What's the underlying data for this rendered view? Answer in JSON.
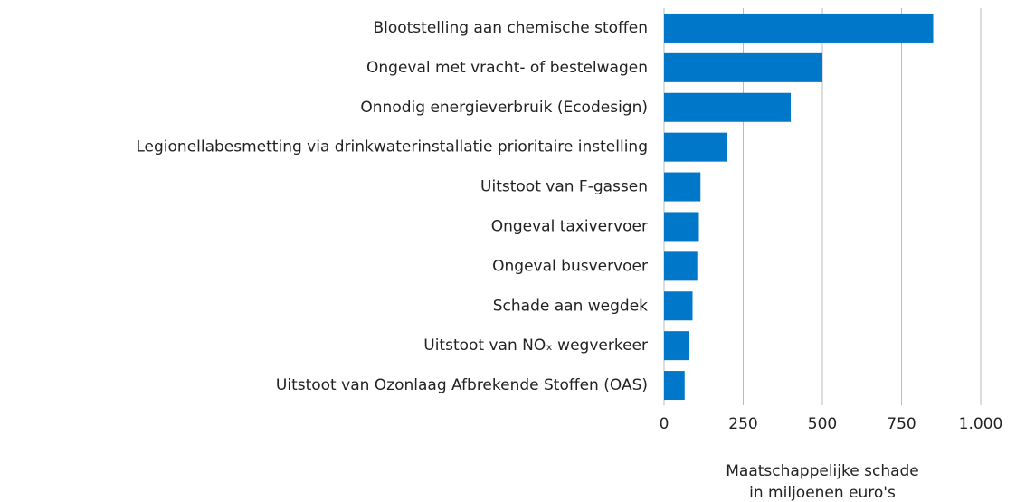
{
  "chart_data": {
    "type": "bar",
    "orientation": "horizontal",
    "categories": [
      "Blootstelling aan chemische stoffen",
      "Ongeval met vracht- of bestelwagen",
      "Onnodig energieverbruik (Ecodesign)",
      "Legionellabesmetting via drinkwaterinstallatie prioritaire instelling",
      "Uitstoot van F-gassen",
      "Ongeval taxivervoer",
      "Ongeval busvervoer",
      "Schade aan wegdek",
      "Uitstoot van NOₓ wegverkeer",
      "Uitstoot van Ozonlaag Afbrekende Stoffen (OAS)"
    ],
    "values": [
      850,
      500,
      400,
      200,
      115,
      110,
      105,
      90,
      80,
      65
    ],
    "color": "#0077c8",
    "xlabel": [
      "Maatschappelijke schade",
      "in miljoenen euro's"
    ],
    "xlim": [
      0,
      1000
    ],
    "xticks": [
      0,
      250,
      500,
      750,
      {
        "value": 1000,
        "label": "1.000"
      }
    ],
    "grid": true
  }
}
